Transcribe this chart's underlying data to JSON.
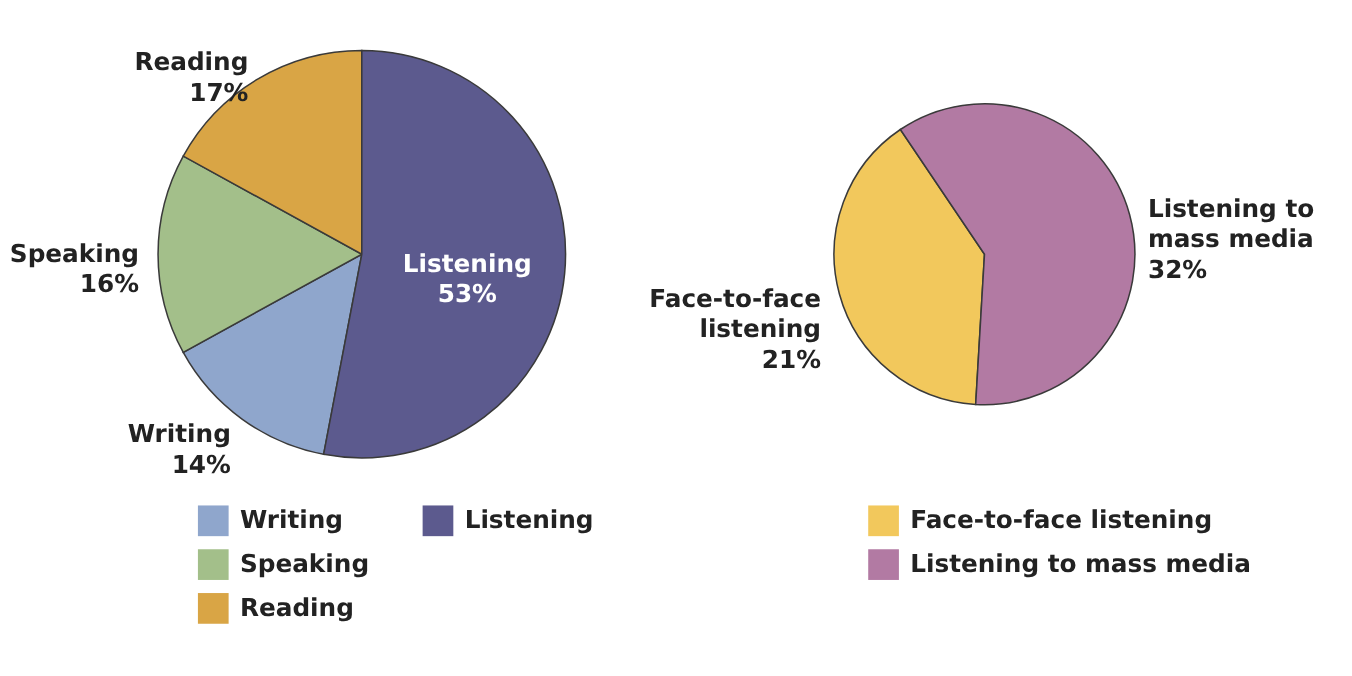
{
  "chart_data": [
    {
      "type": "pie",
      "categories": [
        "Writing",
        "Speaking",
        "Reading",
        "Listening"
      ],
      "values": [
        14,
        16,
        17,
        53
      ],
      "colors": [
        "#8fa6cc",
        "#a3bf8a",
        "#d9a545",
        "#5c5a8e"
      ],
      "value_labels": [
        "14%",
        "16%",
        "17%",
        "53%"
      ],
      "legend": "bottom"
    },
    {
      "type": "pie",
      "categories": [
        "Face-to-face listening",
        "Listening to mass media"
      ],
      "values": [
        21,
        32
      ],
      "colors": [
        "#f2c85c",
        "#b27aa3"
      ],
      "value_labels": [
        "21%",
        "32%"
      ],
      "legend": "bottom"
    }
  ]
}
